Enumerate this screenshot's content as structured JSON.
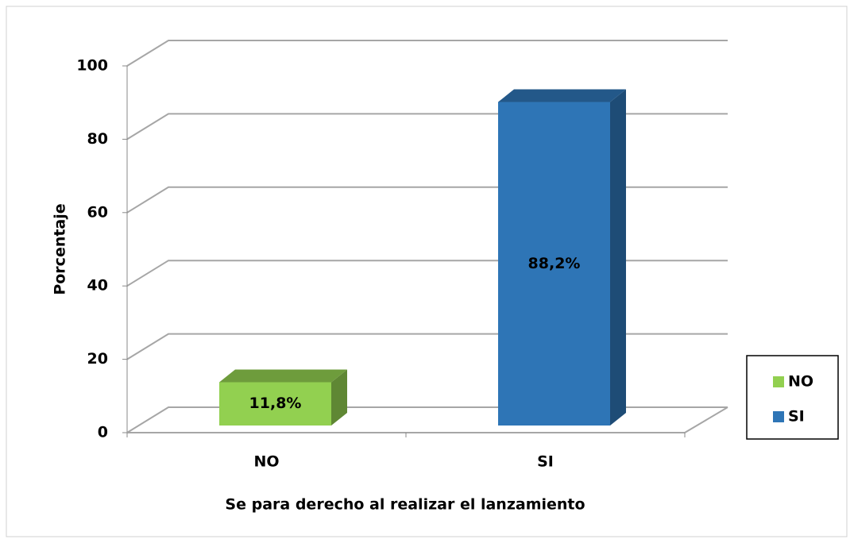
{
  "chart_data": {
    "type": "bar3d",
    "categories": [
      "NO",
      "SI"
    ],
    "values": [
      11.8,
      88.2
    ],
    "value_labels": [
      "11,8%",
      "88,2%"
    ],
    "colors": [
      "#92d050",
      "#2e75b6"
    ],
    "ylim": [
      0,
      100
    ],
    "yticks": [
      0,
      20,
      40,
      60,
      80,
      100
    ],
    "ylabel": "Porcentaje",
    "xlabel": "Se para derecho al realizar el lanzamiento",
    "grid": true,
    "legend": {
      "position": "right",
      "entries": [
        "NO",
        "SI"
      ]
    }
  }
}
